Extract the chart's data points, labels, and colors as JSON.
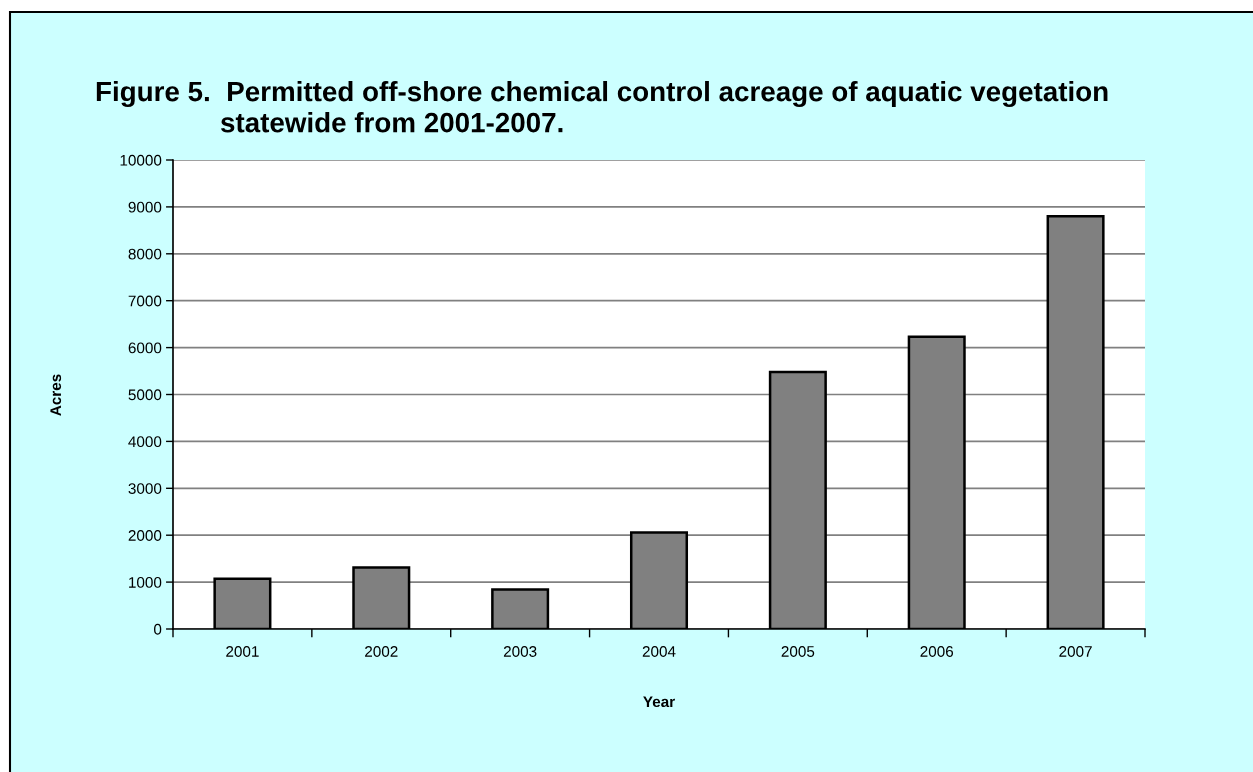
{
  "chart_data": {
    "type": "bar",
    "title": "Figure 5.  Permitted off-shore chemical control acreage of aquatic vegetation\nstatewide from 2001-2007.",
    "xlabel": "Year",
    "ylabel": "Acres",
    "categories": [
      "2001",
      "2002",
      "2003",
      "2004",
      "2005",
      "2006",
      "2007"
    ],
    "values": [
      1070,
      1310,
      840,
      2060,
      5480,
      6230,
      8800
    ],
    "color": "#808080",
    "ylim": [
      0,
      10000
    ],
    "yticks": [
      0,
      1000,
      2000,
      3000,
      4000,
      5000,
      6000,
      7000,
      8000,
      9000,
      10000
    ],
    "grid": "y",
    "legend": false
  }
}
